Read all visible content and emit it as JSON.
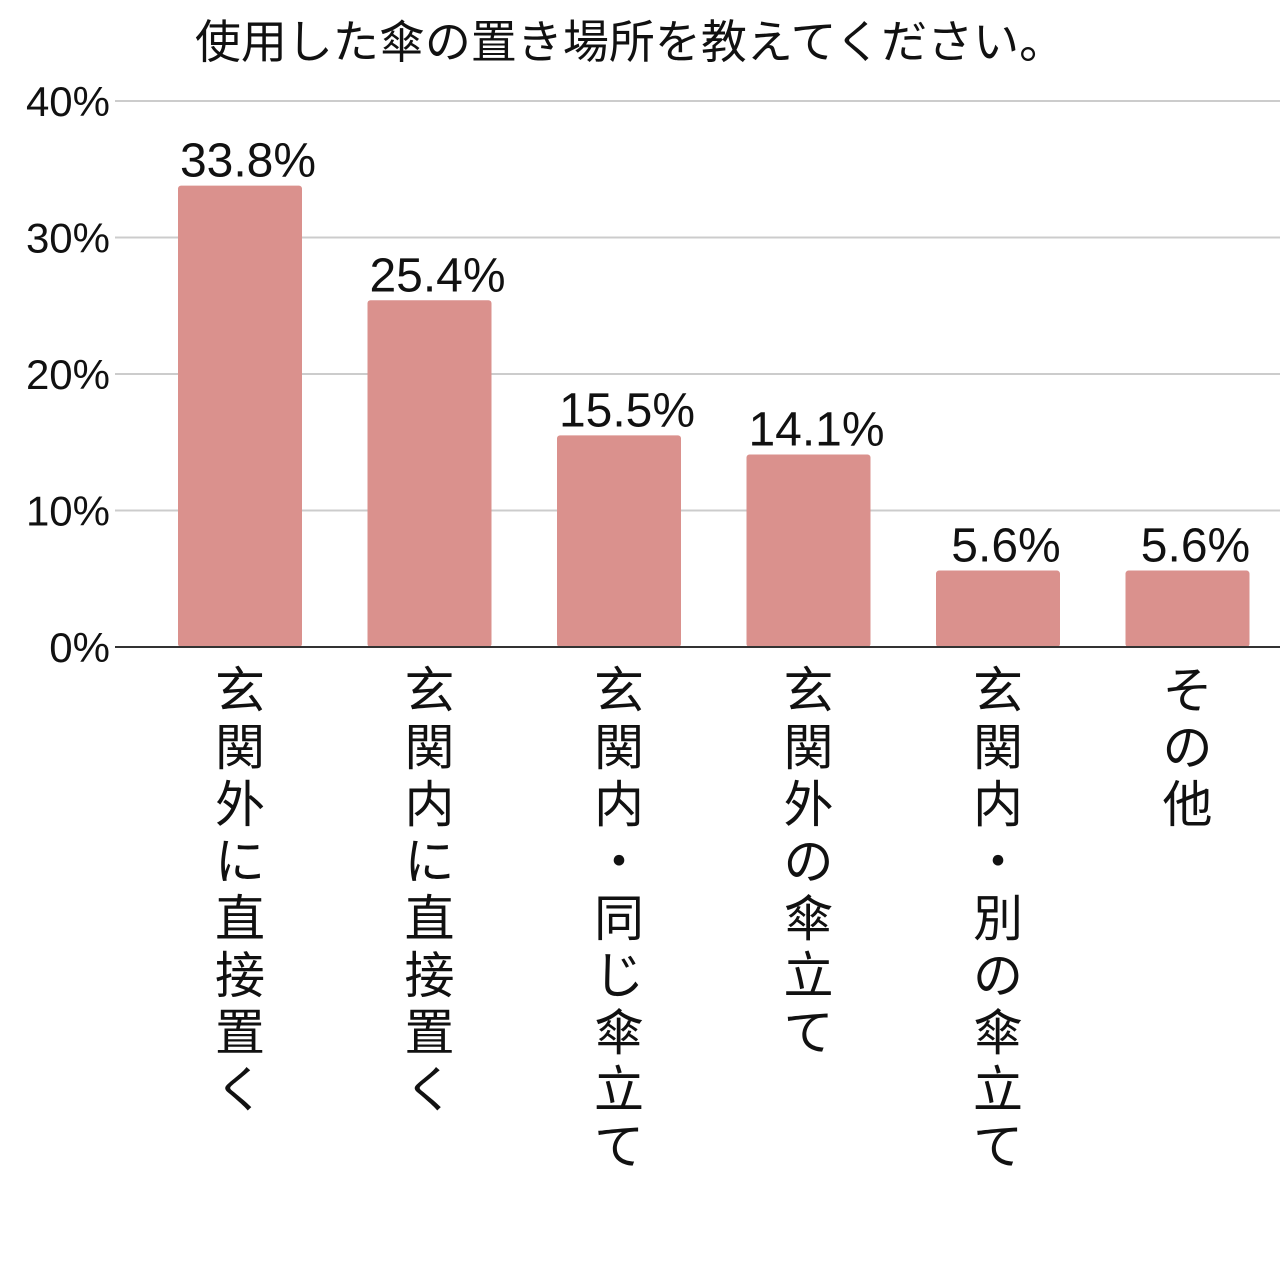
{
  "chart_data": {
    "type": "bar",
    "title": "使用した傘の置き場所を教えてください。",
    "xlabel": "",
    "ylabel": "",
    "ylim": [
      0,
      40
    ],
    "yticks": [
      "0%",
      "10%",
      "20%",
      "30%",
      "40%"
    ],
    "ytick_values": [
      0,
      10,
      20,
      30,
      40
    ],
    "grid": true,
    "legend": "none",
    "categories": [
      "玄関外に直接置く",
      "玄関内に直接置く",
      "玄関内・同じ傘立て",
      "玄関外の傘立て",
      "玄関内・別の傘立て",
      "その他"
    ],
    "values": [
      33.8,
      25.4,
      15.5,
      14.1,
      5.6,
      5.6
    ],
    "data_labels": [
      "33.8%",
      "25.4%",
      "15.5%",
      "14.1%",
      "5.6%",
      "5.6%"
    ],
    "colors": {
      "bar": "#da918d",
      "grid": "#cccccc",
      "axis": "#333333"
    }
  }
}
